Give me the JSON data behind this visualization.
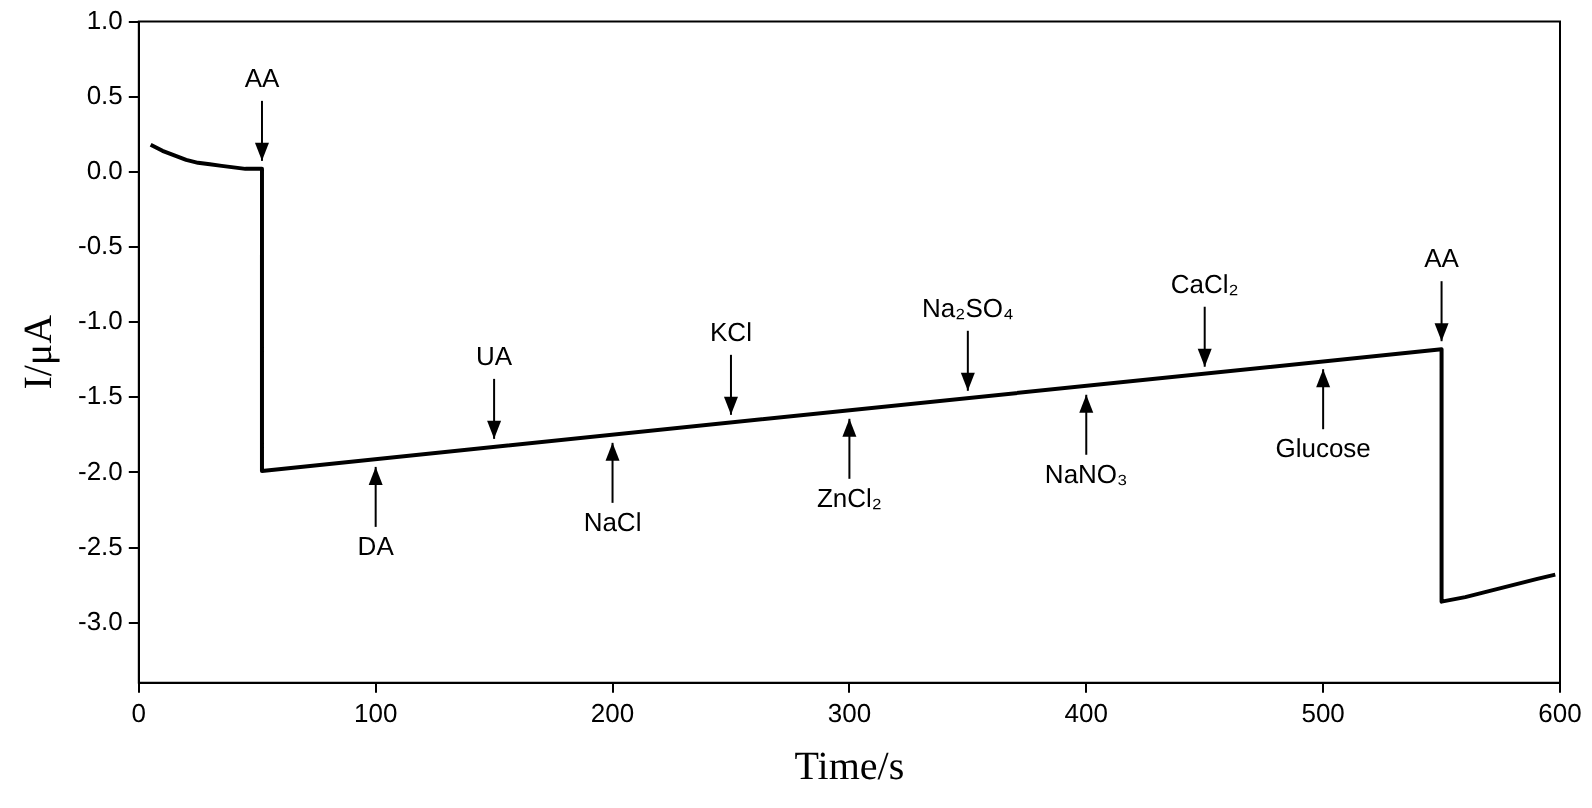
{
  "chart_data": {
    "type": "line",
    "xlabel": "Time/s",
    "ylabel": "I/μA",
    "x": [
      5,
      10,
      15,
      20,
      25,
      30,
      35,
      40,
      45,
      52,
      52,
      550,
      550,
      560,
      570,
      580,
      590,
      598
    ],
    "series": [
      {
        "color": "#000000",
        "values": [
          0.18,
          0.14,
          0.11,
          0.08,
          0.06,
          0.05,
          0.04,
          0.03,
          0.02,
          0.02,
          -1.99,
          -1.18,
          -2.86,
          -2.83,
          -2.79,
          -2.75,
          -2.71,
          -2.68
        ]
      }
    ],
    "xlim": [
      0,
      600
    ],
    "xticks": [
      0,
      100,
      200,
      300,
      400,
      500,
      600
    ],
    "ylim": [
      -3.4,
      1.0
    ],
    "yticks": [
      {
        "value": 1,
        "label": "1.0"
      },
      {
        "value": 0.5,
        "label": "0.5"
      },
      {
        "value": 0,
        "label": "0.0"
      },
      {
        "value": -0.5,
        "label": "-0.5"
      },
      {
        "value": -1,
        "label": "-1.0"
      },
      {
        "value": -1.5,
        "label": "-1.5"
      },
      {
        "value": -2,
        "label": "-2.0"
      },
      {
        "value": -2.5,
        "label": "-2.5"
      },
      {
        "value": -3,
        "label": "-3.0"
      }
    ],
    "grid": false,
    "legend": false,
    "marker": "none",
    "line_style": "solid",
    "annotations": [
      {
        "text": "AA",
        "x": 52,
        "y": 0.02
      },
      {
        "text": "DA",
        "x": 100,
        "y": -1.91
      },
      {
        "text": "UA",
        "x": 150,
        "y": -1.83
      },
      {
        "text": "NaCl",
        "x": 200,
        "y": -1.75
      },
      {
        "text": "KCl",
        "x": 250,
        "y": -1.67
      },
      {
        "text": "ZnCl₂",
        "x": 300,
        "y": -1.59
      },
      {
        "text": "Na₂SO₄",
        "x": 350,
        "y": -1.51
      },
      {
        "text": "NaNO₃",
        "x": 400,
        "y": -1.43
      },
      {
        "text": "CaCl₂",
        "x": 450,
        "y": -1.35
      },
      {
        "text": "Glucose",
        "x": 500,
        "y": -1.26
      },
      {
        "text": "AA",
        "x": 550,
        "y": -1.18
      }
    ]
  }
}
